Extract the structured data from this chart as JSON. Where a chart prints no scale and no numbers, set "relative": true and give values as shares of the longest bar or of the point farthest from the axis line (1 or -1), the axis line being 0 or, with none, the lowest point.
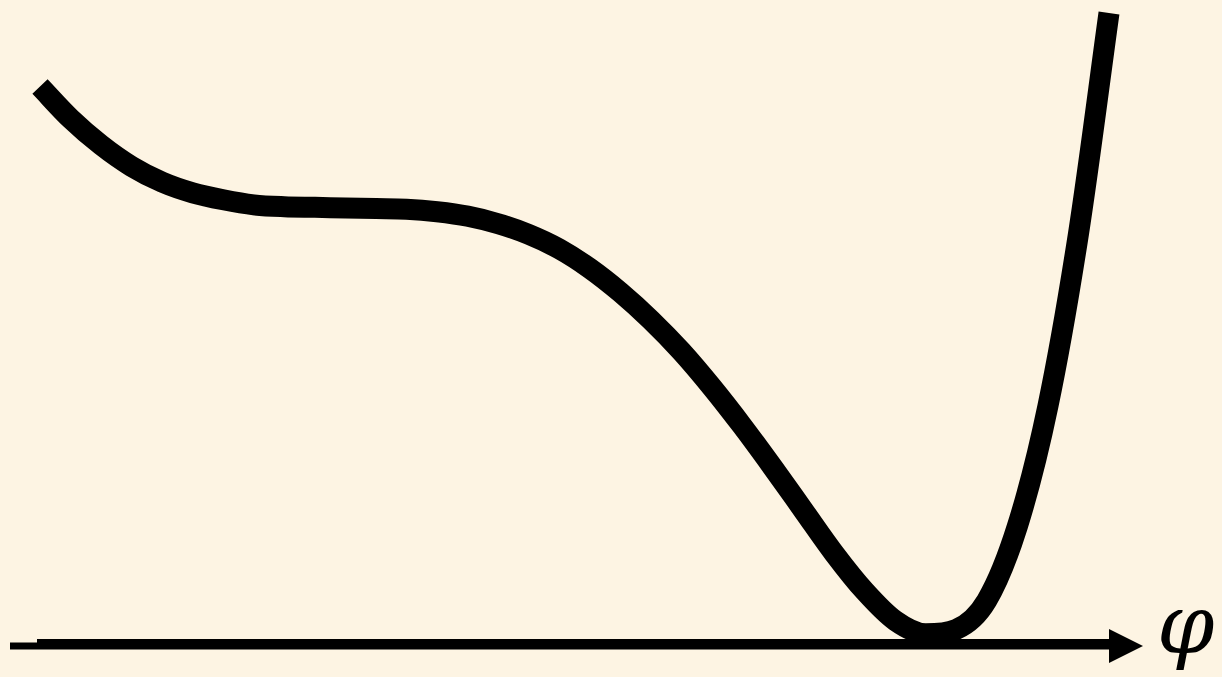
{
  "chart_data": {
    "type": "line",
    "relative": true,
    "xlabel": "φ",
    "categories": [
      null,
      null,
      null,
      null,
      null,
      null,
      null,
      null,
      null,
      null,
      null,
      null,
      null,
      null,
      null,
      null,
      null,
      null,
      null,
      null,
      null,
      null,
      null,
      null,
      null,
      null,
      null,
      null,
      null,
      null,
      null,
      null,
      null,
      null,
      null,
      null
    ],
    "values": [
      0.883,
      0.832,
      0.79,
      0.756,
      0.731,
      0.714,
      0.703,
      0.695,
      0.692,
      0.691,
      0.69,
      0.689,
      0.688,
      0.684,
      0.677,
      0.665,
      0.648,
      0.625,
      0.594,
      0.556,
      0.512,
      0.462,
      0.405,
      0.343,
      0.277,
      0.209,
      0.141,
      0.081,
      0.034,
      0.013,
      0.02,
      0.066,
      0.184,
      0.375,
      0.649,
      1.0
    ],
    "color": "#000000",
    "marker": "none",
    "line_style": "solid"
  }
}
